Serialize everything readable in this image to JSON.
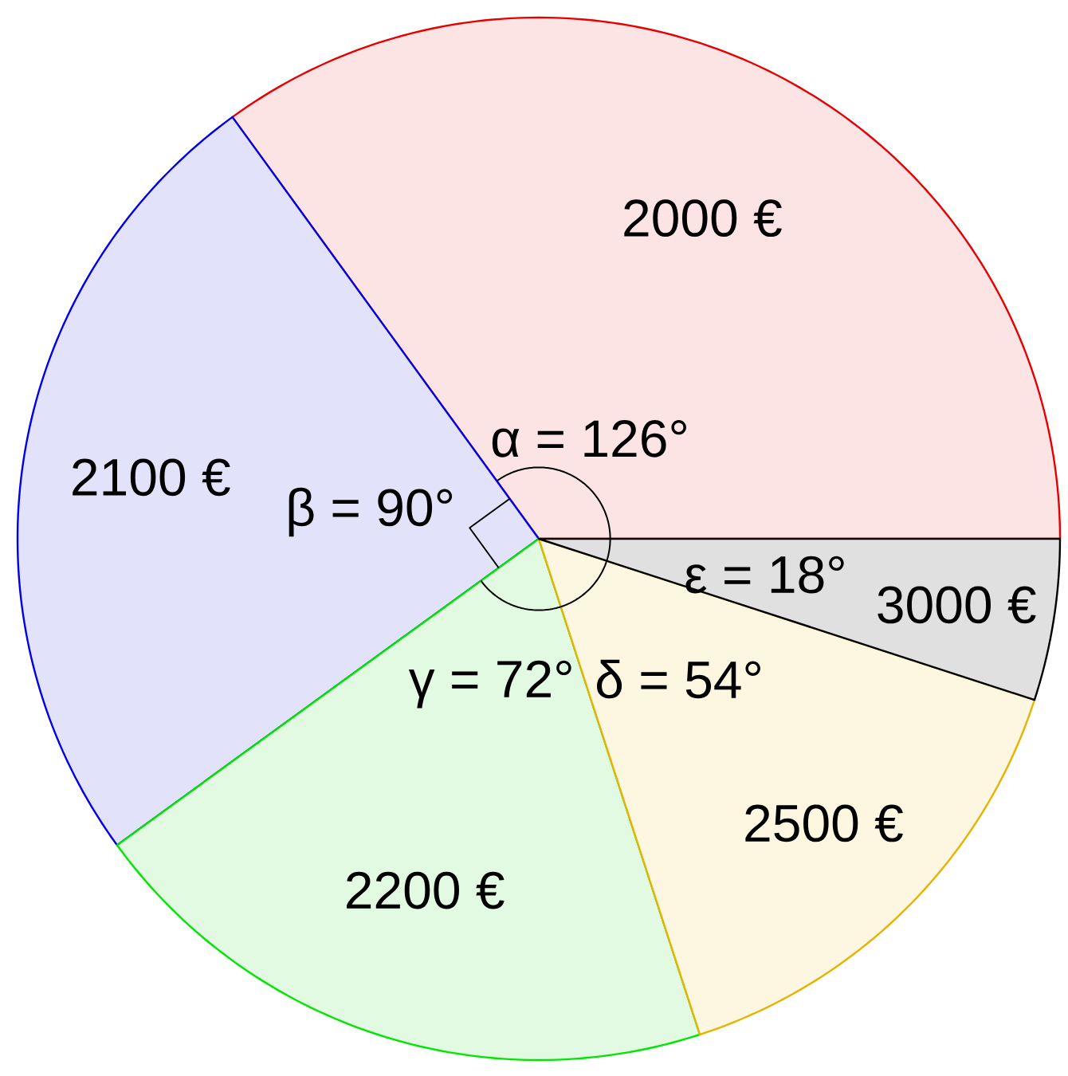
{
  "chart_data": {
    "type": "pie",
    "categories": [
      "2000 €",
      "2100 €",
      "2200 €",
      "2500 €",
      "3000 €"
    ],
    "values": [
      126,
      90,
      72,
      54,
      18
    ],
    "value_labels": [
      "α = 126°",
      "β = 90°",
      "γ = 72°",
      "δ = 54°",
      "ε = 18°"
    ],
    "colors": [
      "#fce4e4",
      "#e2e2fa",
      "#e2fae2",
      "#fdf7e2",
      "#e0e0e0"
    ]
  }
}
